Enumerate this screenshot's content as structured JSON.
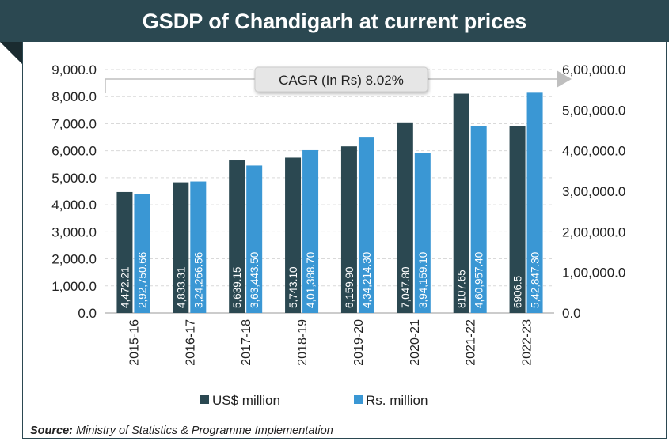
{
  "header": {
    "title": "GSDP of Chandigarh at current prices"
  },
  "source": {
    "label": "Source:",
    "text": "Ministry of Statistics & Programme Implementation"
  },
  "chart_data": {
    "type": "bar",
    "title": "GSDP of Chandigarh at current prices",
    "categories": [
      "2015-16",
      "2016-17",
      "2017-18",
      "2018-19",
      "2019-20",
      "2020-21",
      "2021-22",
      "2022-23"
    ],
    "series": [
      {
        "name": "US$ million",
        "axis": "left",
        "color": "#2b4851",
        "values": [
          4472.21,
          4833.31,
          5639.15,
          5743.1,
          6159.9,
          7047.8,
          8107.65,
          6906.5
        ],
        "labels": [
          "4,472.21",
          "4,833.31",
          "5,639.15",
          "5,743.10",
          "6,159.90",
          "7,047.80",
          "8107.65",
          "6906.5"
        ]
      },
      {
        "name": "Rs. million",
        "axis": "right",
        "color": "#3a97d4",
        "values": [
          292750.66,
          324266.56,
          363443.5,
          401388.7,
          434214.3,
          394159.1,
          460957.4,
          542847.3
        ],
        "labels": [
          "2,92,750.66",
          "3,24,266.56",
          "3,63,443.50",
          "4,01,388.70",
          "4,34,214.30",
          "3,94,159.10",
          "4,60,957.40",
          "5,42,847.30"
        ]
      }
    ],
    "left_axis": {
      "ylim": [
        0,
        9000
      ],
      "ticks": [
        "0.0",
        "1,000.0",
        "2,000.0",
        "3,000.0",
        "4,000.0",
        "5,000.0",
        "6,000.0",
        "7,000.0",
        "8,000.0",
        "9,000.0"
      ]
    },
    "right_axis": {
      "ylim": [
        0,
        600000
      ],
      "ticks": [
        "0.0",
        "1,00,000.0",
        "2,00,000.0",
        "3,00,000.0",
        "4,00,000.0",
        "5,00,000.0",
        "6,00,000.0"
      ]
    },
    "annotation": "CAGR (In Rs) 8.02%",
    "grid": true,
    "legend": "bottom"
  }
}
